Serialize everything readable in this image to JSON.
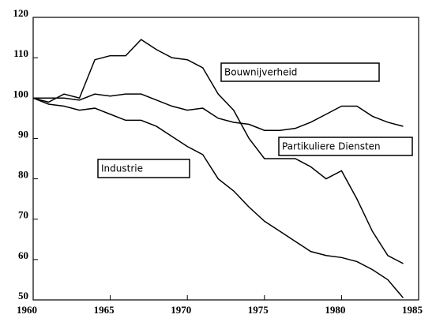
{
  "chart_data": {
    "type": "line",
    "x": [
      1960,
      1961,
      1962,
      1963,
      1964,
      1965,
      1966,
      1967,
      1968,
      1969,
      1970,
      1971,
      1972,
      1973,
      1974,
      1975,
      1976,
      1977,
      1978,
      1979,
      1980,
      1981,
      1982,
      1983,
      1984
    ],
    "series": [
      {
        "name": "Bouwnijverheid",
        "color": "#000000",
        "values": [
          100,
          99,
          101,
          100,
          109.5,
          110.5,
          110.5,
          114.5,
          112,
          110,
          109.5,
          107.5,
          101,
          97,
          90,
          85,
          85,
          85,
          83,
          80,
          82,
          75,
          67,
          61,
          59
        ]
      },
      {
        "name": "Partikuliere Diensten",
        "color": "#000000",
        "values": [
          100,
          100,
          100,
          99.5,
          101,
          100.5,
          101,
          101,
          99.5,
          98,
          97,
          97.5,
          95,
          94,
          93.5,
          92,
          92,
          92.5,
          94,
          96,
          98,
          98,
          95.5,
          94,
          93
        ]
      },
      {
        "name": "Industrie",
        "color": "#000000",
        "values": [
          100,
          98.5,
          98,
          97,
          97.5,
          96,
          94.5,
          94.5,
          93,
          90.5,
          88,
          86,
          80,
          77,
          73,
          69.5,
          67,
          64.5,
          62,
          61,
          60.5,
          59.5,
          57.5,
          55,
          50.5
        ]
      }
    ],
    "xlim": [
      1960,
      1985
    ],
    "xticks": [
      1960,
      1965,
      1970,
      1975,
      1980,
      1985
    ],
    "ylim": [
      50,
      120
    ],
    "yticks": [
      50,
      60,
      70,
      80,
      90,
      100,
      110,
      120
    ]
  }
}
